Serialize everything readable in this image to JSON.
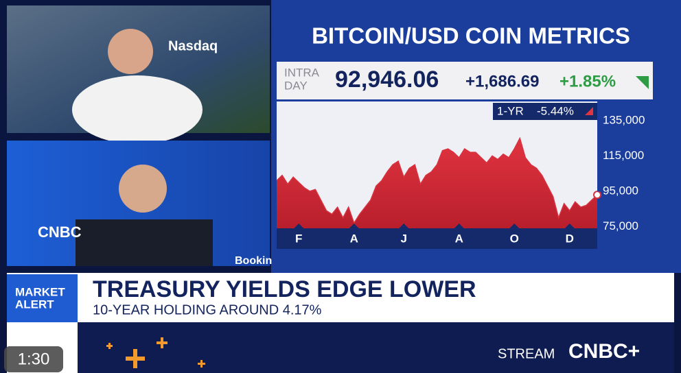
{
  "video": {
    "top_logo": "Nasdaq",
    "bottom_logo": "CNBC",
    "bottom_sign": "Bookin"
  },
  "quote": {
    "label": [
      "INTRA",
      "DAY"
    ],
    "price": "92,946.06",
    "change": "+1,686.69",
    "change_percent": "+1.85%"
  },
  "chart_data": {
    "type": "area",
    "title": "BITCOIN/USD COIN METRICS",
    "period": "1-YR",
    "period_change": "-5.44%",
    "color": "#d8323f",
    "categories": [
      null,
      null,
      null,
      null,
      "F",
      null,
      null,
      null,
      null,
      null,
      null,
      null,
      null,
      null,
      "A",
      null,
      null,
      null,
      null,
      null,
      null,
      null,
      null,
      "J",
      null,
      null,
      null,
      null,
      null,
      null,
      null,
      null,
      null,
      "A",
      null,
      null,
      null,
      null,
      null,
      null,
      null,
      null,
      null,
      "O",
      null,
      null,
      null,
      null,
      null,
      null,
      null,
      null,
      null,
      "D",
      null,
      null,
      null,
      null,
      null
    ],
    "values": [
      101000,
      104000,
      99000,
      103000,
      100000,
      97000,
      95000,
      96000,
      90000,
      84000,
      82000,
      86000,
      80000,
      86000,
      77000,
      82000,
      86000,
      90000,
      98000,
      101000,
      106000,
      110000,
      112000,
      103000,
      108000,
      110000,
      99000,
      104000,
      106000,
      110000,
      118000,
      119000,
      117000,
      114000,
      119000,
      117000,
      117000,
      114000,
      111000,
      115000,
      113000,
      116000,
      114000,
      119000,
      125000,
      114000,
      110000,
      108000,
      104000,
      98000,
      92000,
      80000,
      88000,
      84000,
      89000,
      86000,
      87000,
      90000,
      92946.06
    ],
    "ylim": [
      74000,
      145000
    ],
    "yticks": [
      {
        "value": 75000,
        "label": "75,000"
      },
      {
        "value": 95000,
        "label": "95,000"
      },
      {
        "value": 115000,
        "label": "115,000"
      },
      {
        "value": 135000,
        "label": "135,000"
      }
    ]
  },
  "alert": {
    "tag": [
      "MARKET",
      "ALERT"
    ],
    "headline": "TREASURY YIELDS EDGE LOWER",
    "subheadline": "10-YEAR HOLDING AROUND 4.17%"
  },
  "footer": {
    "stream": "STREAM",
    "brand": "CNBC+"
  },
  "player": {
    "time": "1:30"
  }
}
